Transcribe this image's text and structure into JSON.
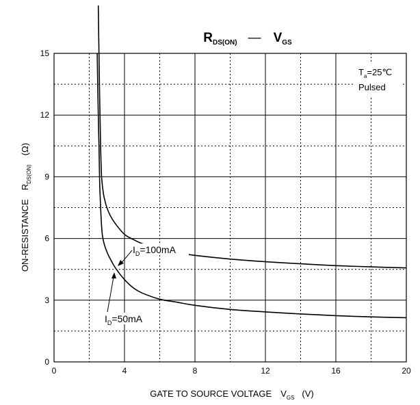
{
  "chart_data": {
    "type": "line",
    "title": {
      "r_main": "R",
      "r_sub": "DS(ON)",
      "dash": "—",
      "v_main": "V",
      "v_sub": "GS"
    },
    "xlabel": {
      "main": "GATE TO SOURCE VOLTAGE",
      "sym": "V",
      "sym_sub": "GS",
      "unit": "(V)"
    },
    "ylabel": {
      "main": "ON-RESISTANCE",
      "sym": "R",
      "sym_sub": "DS(ON)",
      "unit": "(Ω)"
    },
    "xlim": [
      0,
      20
    ],
    "ylim": [
      0,
      15
    ],
    "x_major_ticks": [
      "0",
      "4",
      "8",
      "12",
      "16",
      "20"
    ],
    "y_major_ticks": [
      "0",
      "3",
      "6",
      "9",
      "12",
      "15"
    ],
    "grid": true,
    "conditions": {
      "ta_main": "T",
      "ta_sub": "a",
      "ta_value": "=25℃",
      "pulse": "Pulsed"
    },
    "series": [
      {
        "id_main": "I",
        "id_sub": "D",
        "id_value": "=100mA",
        "x": [
          2.55,
          2.6,
          2.65,
          2.7,
          2.8,
          2.9,
          3.0,
          3.2,
          3.5,
          4.0,
          4.5,
          5.0,
          6.0,
          7.0,
          8.0,
          10.0,
          12.0,
          14.0,
          16.0,
          18.0,
          20.0
        ],
        "y": [
          15.0,
          12.5,
          10.3,
          9.0,
          8.2,
          7.8,
          7.5,
          7.1,
          6.7,
          6.2,
          5.95,
          5.75,
          5.45,
          5.3,
          5.18,
          5.0,
          4.87,
          4.77,
          4.68,
          4.62,
          4.57
        ]
      },
      {
        "id_main": "I",
        "id_sub": "D",
        "id_value": "=50mA",
        "x": [
          2.45,
          2.5,
          2.55,
          2.6,
          2.7,
          2.8,
          3.0,
          3.2,
          3.5,
          4.0,
          4.5,
          5.0,
          6.0,
          7.0,
          8.0,
          10.0,
          12.0,
          14.0,
          16.0,
          18.0,
          20.0
        ],
        "y": [
          15.0,
          12.5,
          10.5,
          8.5,
          6.6,
          5.9,
          5.35,
          5.0,
          4.55,
          4.0,
          3.6,
          3.35,
          3.05,
          2.9,
          2.75,
          2.55,
          2.43,
          2.33,
          2.25,
          2.19,
          2.15
        ]
      }
    ]
  }
}
